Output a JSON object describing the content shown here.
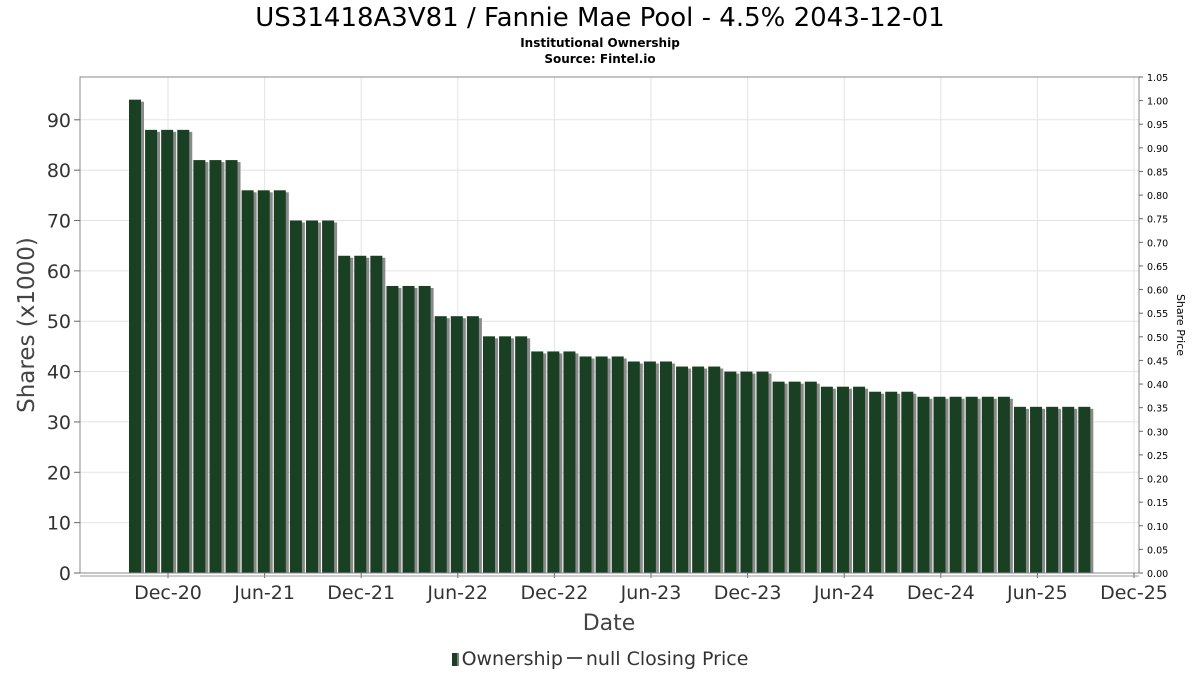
{
  "title": "US31418A3V81 / Fannie Mae Pool - 4.5% 2043-12-01",
  "subtitle": "Institutional Ownership",
  "source": "Source: Fintel.io",
  "legend": {
    "ownership": "Ownership",
    "price": "null Closing Price",
    "colors": {
      "bar": "#1a4024",
      "shadow": "#7f7f7f",
      "line": "#555555"
    }
  },
  "chart_data": {
    "type": "bar",
    "xlabel": "Date",
    "ylabel": "Shares (x1000)",
    "y2label": "Share Price",
    "ylim": [
      0,
      98.5
    ],
    "y2lim": [
      0,
      1.05
    ],
    "yticks": [
      0,
      10,
      20,
      30,
      40,
      50,
      60,
      70,
      80,
      90
    ],
    "y2ticks": [
      "0.00",
      "0.05",
      "0.10",
      "0.15",
      "0.20",
      "0.25",
      "0.30",
      "0.35",
      "0.40",
      "0.45",
      "0.50",
      "0.55",
      "0.60",
      "0.65",
      "0.70",
      "0.75",
      "0.80",
      "0.85",
      "0.90",
      "0.95",
      "1.00",
      "1.05"
    ],
    "xticks": [
      "Dec-20",
      "Jun-21",
      "Dec-21",
      "Jun-22",
      "Dec-22",
      "Jun-23",
      "Dec-23",
      "Jun-24",
      "Dec-24",
      "Jun-25",
      "Dec-25"
    ],
    "grid": true,
    "legend_position": "bottom",
    "series": [
      {
        "name": "Ownership",
        "values": [
          94,
          88,
          88,
          88,
          82,
          82,
          82,
          76,
          76,
          76,
          70,
          70,
          70,
          63,
          63,
          63,
          57,
          57,
          57,
          51,
          51,
          51,
          47,
          47,
          47,
          44,
          44,
          44,
          43,
          43,
          43,
          42,
          42,
          42,
          41,
          41,
          41,
          40,
          40,
          40,
          38,
          38,
          38,
          37,
          37,
          37,
          36,
          36,
          36,
          35,
          35,
          35,
          35,
          35,
          35,
          33,
          33,
          33,
          33,
          33
        ]
      }
    ]
  }
}
